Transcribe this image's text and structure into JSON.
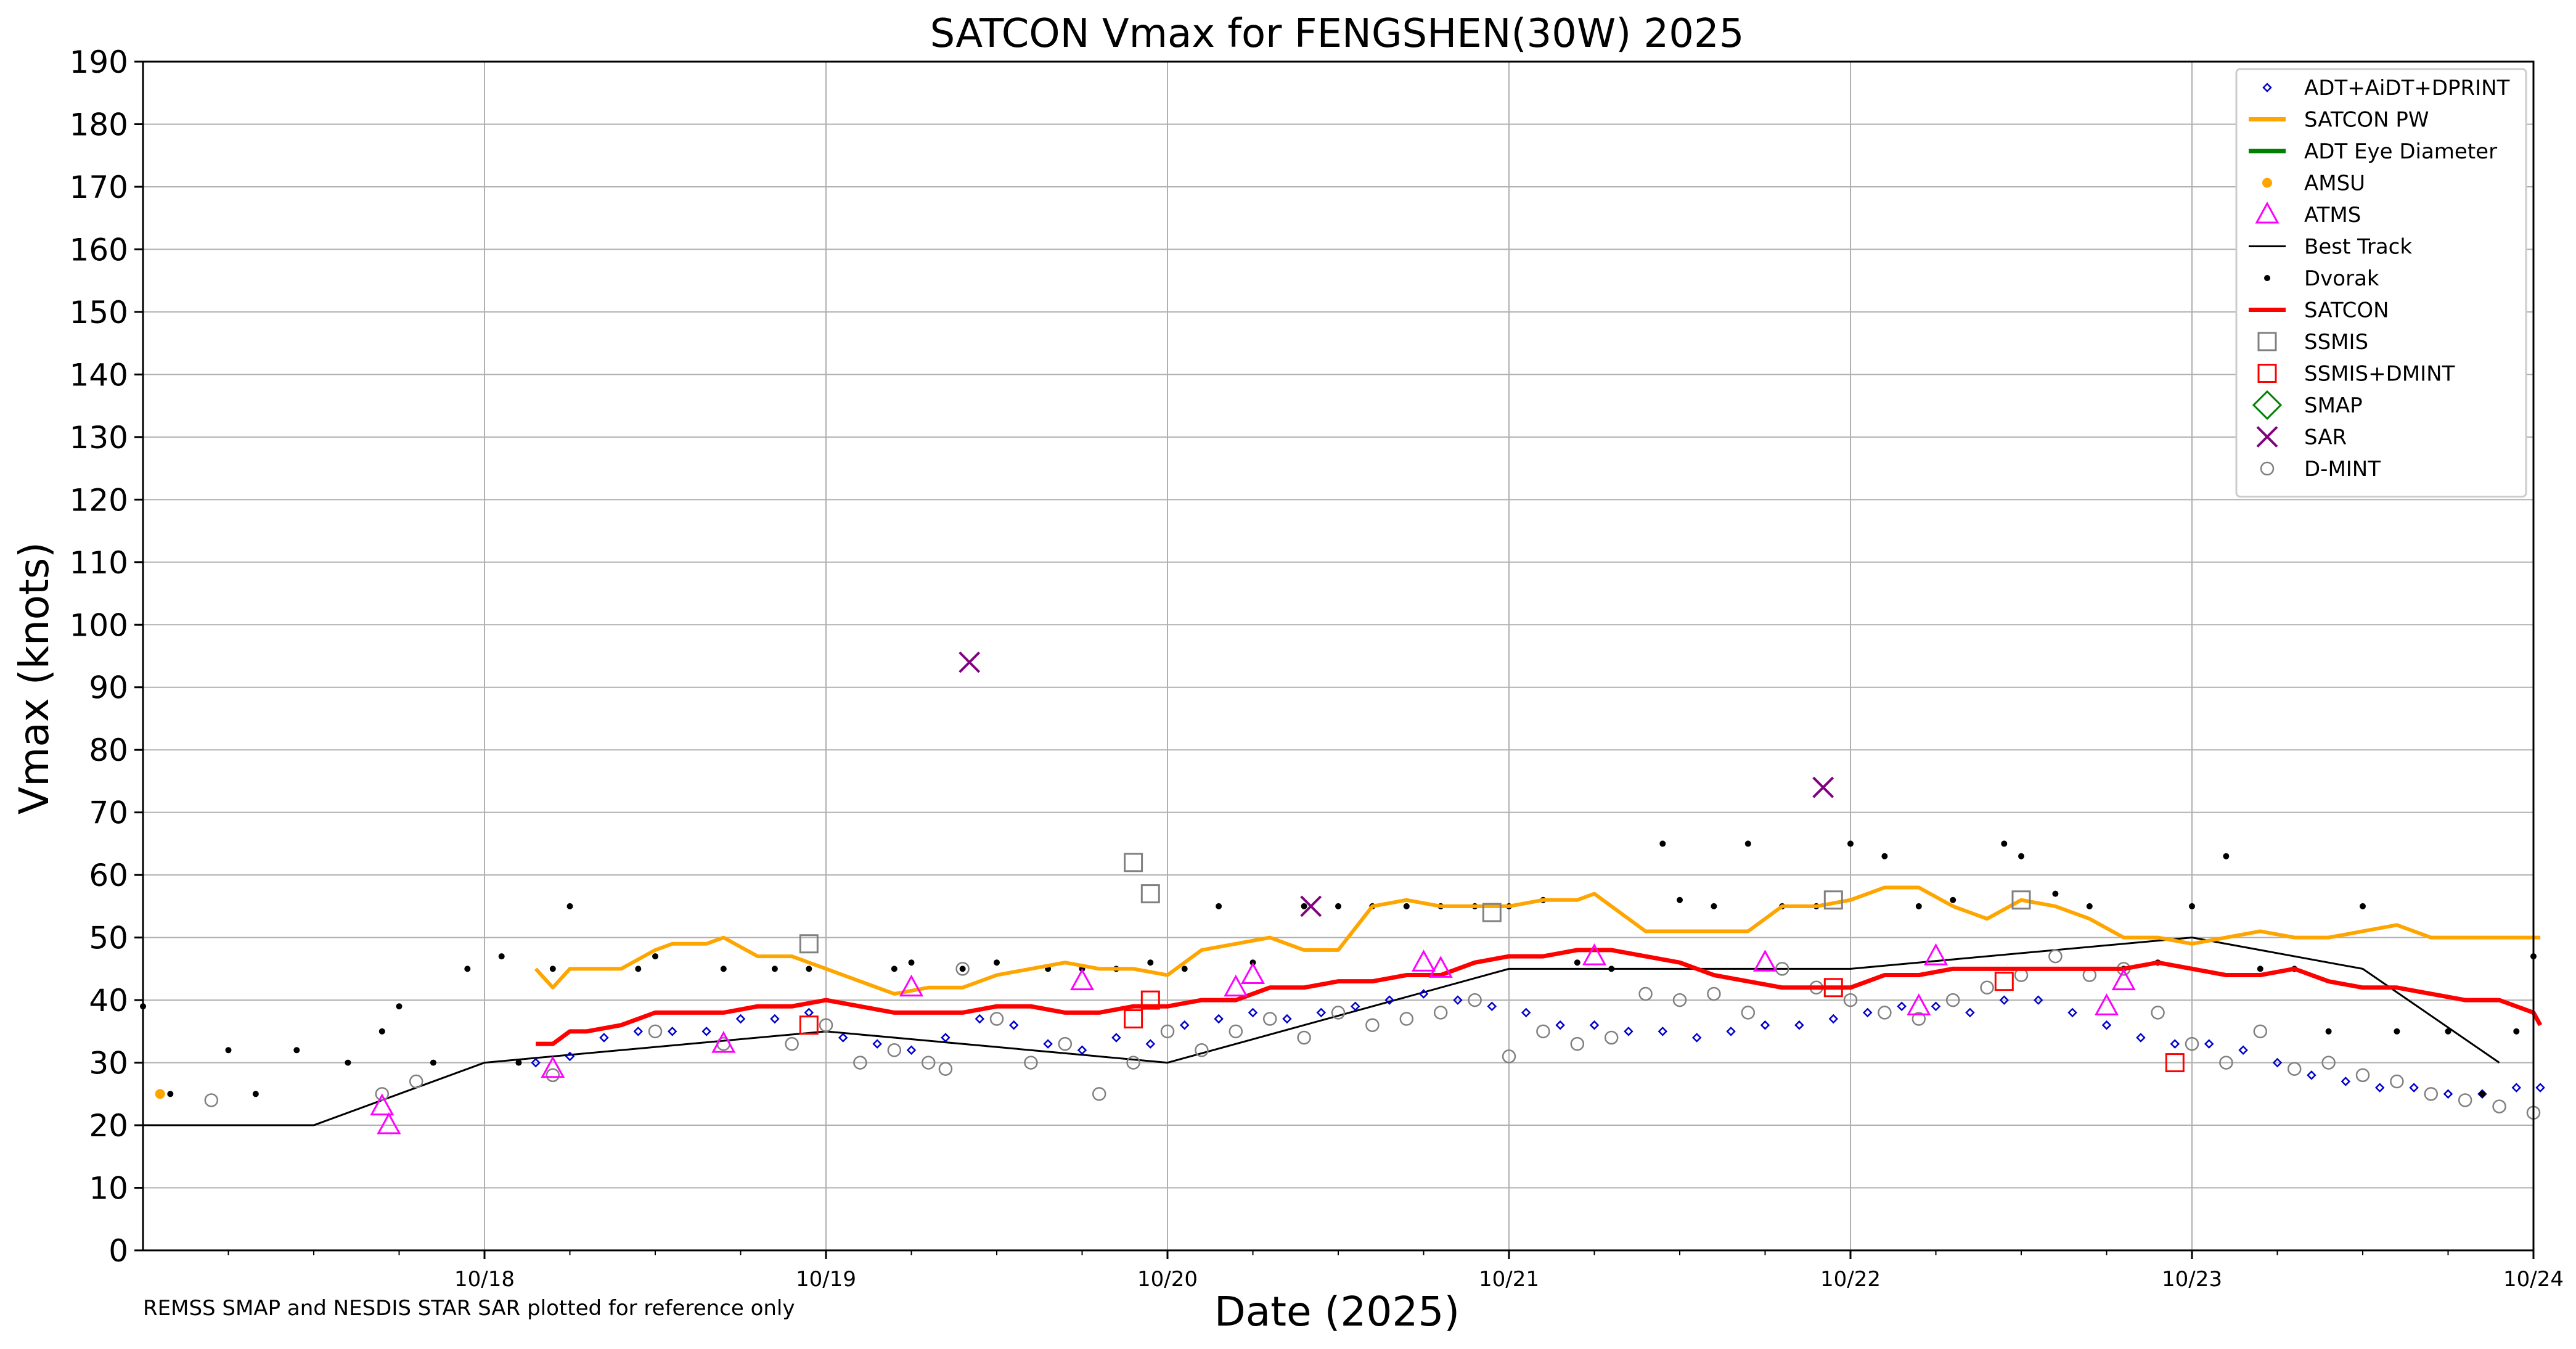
{
  "chart_data": {
    "type": "line",
    "title": "SATCON Vmax for FENGSHEN(30W) 2025",
    "xlabel": "Date (2025)",
    "ylabel": "Vmax (knots)",
    "xlim": [
      "10/17 00Z",
      "10/24 00Z"
    ],
    "ylim": [
      0,
      190
    ],
    "yticks": [
      0,
      10,
      20,
      30,
      40,
      50,
      60,
      70,
      80,
      90,
      100,
      110,
      120,
      130,
      140,
      150,
      160,
      170,
      180,
      190
    ],
    "xticks": [
      "10/18",
      "10/19",
      "10/20",
      "10/21",
      "10/22",
      "10/23",
      "10/24"
    ],
    "grid": true,
    "legend_position": "top-right",
    "note": "REMSS SMAP and NESDIS STAR SAR plotted for reference only",
    "legend": [
      {
        "name": "ADT+AiDT+DPRINT",
        "marker": "diamond",
        "color": "#0000cc"
      },
      {
        "name": "SATCON PW",
        "marker": "line",
        "color": "#ffa500"
      },
      {
        "name": "ADT Eye Diameter",
        "marker": "line",
        "color": "#008000"
      },
      {
        "name": "AMSU",
        "marker": "dot",
        "color": "#ffa500"
      },
      {
        "name": "ATMS",
        "marker": "triangle",
        "color": "#ff00ff"
      },
      {
        "name": "Best Track",
        "marker": "thinline",
        "color": "#000000"
      },
      {
        "name": "Dvorak",
        "marker": "smalldot",
        "color": "#000000"
      },
      {
        "name": "SATCON",
        "marker": "line",
        "color": "#ff0000"
      },
      {
        "name": "SSMIS",
        "marker": "square",
        "color": "#808080"
      },
      {
        "name": "SSMIS+DMINT",
        "marker": "square",
        "color": "#ff0000"
      },
      {
        "name": "SMAP",
        "marker": "bigdiamond",
        "color": "#008000"
      },
      {
        "name": "SAR",
        "marker": "x",
        "color": "#800080"
      },
      {
        "name": "D-MINT",
        "marker": "circle",
        "color": "#808080"
      }
    ],
    "series": {
      "best_track": {
        "x": [
          0,
          0.5,
          1,
          2,
          3,
          4,
          5,
          6,
          6.5,
          6.9
        ],
        "y": [
          20,
          20,
          30,
          35,
          30,
          45,
          45,
          50,
          45,
          30
        ]
      },
      "satcon_pw": {
        "x": [
          1.15,
          1.2,
          1.25,
          1.3,
          1.4,
          1.5,
          1.55,
          1.6,
          1.65,
          1.7,
          1.8,
          1.9,
          2.0,
          2.1,
          2.2,
          2.3,
          2.4,
          2.5,
          2.6,
          2.7,
          2.8,
          2.9,
          3.0,
          3.1,
          3.2,
          3.3,
          3.4,
          3.5,
          3.6,
          3.7,
          3.8,
          3.9,
          4.0,
          4.1,
          4.2,
          4.25,
          4.3,
          4.4,
          4.5,
          4.6,
          4.7,
          4.8,
          4.9,
          5.0,
          5.1,
          5.2,
          5.3,
          5.4,
          5.5,
          5.6,
          5.7,
          5.8,
          5.9,
          6.0,
          6.1,
          6.2,
          6.3,
          6.4,
          6.5,
          6.6,
          6.7,
          6.8,
          6.9,
          7.0,
          7.02
        ],
        "y": [
          45,
          42,
          45,
          45,
          45,
          48,
          49,
          49,
          49,
          50,
          47,
          47,
          45,
          43,
          41,
          42,
          42,
          44,
          45,
          46,
          45,
          45,
          44,
          48,
          49,
          50,
          48,
          48,
          55,
          56,
          55,
          55,
          55,
          56,
          56,
          57,
          55,
          51,
          51,
          51,
          51,
          55,
          55,
          56,
          58,
          58,
          55,
          53,
          56,
          55,
          53,
          50,
          50,
          49,
          50,
          51,
          50,
          50,
          51,
          52,
          50,
          50,
          50,
          50,
          50
        ]
      },
      "satcon": {
        "x": [
          1.15,
          1.2,
          1.25,
          1.3,
          1.4,
          1.5,
          1.6,
          1.7,
          1.8,
          1.9,
          2.0,
          2.1,
          2.2,
          2.3,
          2.4,
          2.5,
          2.6,
          2.7,
          2.8,
          2.9,
          3.0,
          3.1,
          3.2,
          3.3,
          3.4,
          3.5,
          3.6,
          3.7,
          3.8,
          3.9,
          4.0,
          4.1,
          4.2,
          4.3,
          4.4,
          4.5,
          4.6,
          4.7,
          4.8,
          4.9,
          5.0,
          5.1,
          5.2,
          5.3,
          5.4,
          5.5,
          5.6,
          5.7,
          5.8,
          5.9,
          6.0,
          6.1,
          6.2,
          6.3,
          6.4,
          6.5,
          6.6,
          6.7,
          6.8,
          6.9,
          7.0,
          7.02
        ],
        "y": [
          33,
          33,
          35,
          35,
          36,
          38,
          38,
          38,
          39,
          39,
          40,
          39,
          38,
          38,
          38,
          39,
          39,
          38,
          38,
          39,
          39,
          40,
          40,
          42,
          42,
          43,
          43,
          44,
          44,
          46,
          47,
          47,
          48,
          48,
          47,
          46,
          44,
          43,
          42,
          42,
          42,
          44,
          44,
          45,
          45,
          45,
          45,
          45,
          45,
          46,
          45,
          44,
          44,
          45,
          43,
          42,
          42,
          41,
          40,
          40,
          38,
          36
        ]
      },
      "adt": {
        "x": [
          1.15,
          1.25,
          1.35,
          1.45,
          1.55,
          1.65,
          1.75,
          1.85,
          1.95,
          2.05,
          2.15,
          2.25,
          2.35,
          2.45,
          2.55,
          2.65,
          2.75,
          2.85,
          2.95,
          3.05,
          3.15,
          3.25,
          3.35,
          3.45,
          3.55,
          3.65,
          3.75,
          3.85,
          3.95,
          4.05,
          4.15,
          4.25,
          4.35,
          4.45,
          4.55,
          4.65,
          4.75,
          4.85,
          4.95,
          5.05,
          5.15,
          5.25,
          5.35,
          5.45,
          5.55,
          5.65,
          5.75,
          5.85,
          5.95,
          6.05,
          6.15,
          6.25,
          6.35,
          6.45,
          6.55,
          6.65,
          6.75,
          6.85,
          6.95,
          7.02
        ],
        "y": [
          30,
          31,
          34,
          35,
          35,
          35,
          37,
          37,
          38,
          34,
          33,
          32,
          34,
          37,
          36,
          33,
          32,
          34,
          33,
          36,
          37,
          38,
          37,
          38,
          39,
          40,
          41,
          40,
          39,
          38,
          36,
          36,
          35,
          35,
          34,
          35,
          36,
          36,
          37,
          38,
          39,
          39,
          38,
          40,
          40,
          38,
          36,
          34,
          33,
          33,
          32,
          30,
          28,
          27,
          26,
          26,
          25,
          25,
          26,
          26
        ]
      },
      "dvorak": {
        "x": [
          0,
          0.08,
          0.25,
          0.33,
          0.45,
          0.6,
          0.7,
          0.75,
          0.85,
          0.95,
          1.05,
          1.1,
          1.2,
          1.25,
          1.45,
          1.5,
          1.7,
          1.85,
          1.95,
          2.2,
          2.25,
          2.4,
          2.5,
          2.65,
          2.75,
          2.85,
          2.95,
          3.05,
          3.15,
          3.25,
          3.4,
          3.5,
          3.6,
          3.7,
          3.8,
          3.9,
          4.0,
          4.1,
          4.2,
          4.3,
          4.45,
          4.5,
          4.6,
          4.7,
          4.8,
          4.9,
          5.0,
          5.1,
          5.2,
          5.3,
          5.45,
          5.5,
          5.6,
          5.7,
          5.8,
          5.9,
          6.0,
          6.1,
          6.2,
          6.3,
          6.4,
          6.5,
          6.6,
          6.75,
          6.85,
          6.95,
          7.0
        ],
        "y": [
          39,
          25,
          32,
          25,
          32,
          30,
          35,
          39,
          30,
          45,
          47,
          30,
          45,
          55,
          45,
          47,
          45,
          45,
          45,
          45,
          46,
          45,
          46,
          45,
          45,
          45,
          46,
          45,
          55,
          46,
          55,
          55,
          55,
          55,
          55,
          55,
          55,
          56,
          46,
          45,
          65,
          56,
          55,
          65,
          55,
          55,
          65,
          63,
          55,
          56,
          65,
          63,
          57,
          55,
          45,
          46,
          55,
          63,
          45,
          45,
          35,
          55,
          35,
          35,
          25,
          35,
          47
        ]
      },
      "dmint": {
        "x": [
          0.2,
          0.7,
          0.8,
          1.2,
          1.5,
          1.7,
          1.9,
          2.0,
          2.1,
          2.2,
          2.3,
          2.35,
          2.4,
          2.5,
          2.6,
          2.7,
          2.8,
          2.9,
          3.0,
          3.1,
          3.2,
          3.3,
          3.4,
          3.5,
          3.6,
          3.7,
          3.8,
          3.9,
          4.0,
          4.1,
          4.2,
          4.3,
          4.4,
          4.5,
          4.6,
          4.7,
          4.8,
          4.9,
          5.0,
          5.1,
          5.2,
          5.3,
          5.4,
          5.5,
          5.6,
          5.7,
          5.8,
          5.9,
          6.0,
          6.1,
          6.2,
          6.3,
          6.4,
          6.5,
          6.6,
          6.7,
          6.8,
          6.9,
          7.0,
          7.15,
          7.2
        ],
        "y": [
          24,
          25,
          27,
          28,
          35,
          33,
          33,
          36,
          30,
          32,
          30,
          29,
          45,
          37,
          30,
          33,
          25,
          30,
          35,
          32,
          35,
          37,
          34,
          38,
          36,
          37,
          38,
          40,
          31,
          35,
          33,
          34,
          41,
          40,
          41,
          38,
          45,
          42,
          40,
          38,
          37,
          40,
          42,
          44,
          47,
          44,
          45,
          38,
          33,
          30,
          35,
          29,
          30,
          28,
          27,
          25,
          24,
          23,
          22,
          22,
          24
        ]
      },
      "ssmis": {
        "x": [
          1.95,
          2.9,
          2.95,
          3.95,
          4.95,
          5.5
        ],
        "y": [
          49,
          62,
          57,
          54,
          56,
          56
        ]
      },
      "ssmis_dmint": {
        "x": [
          1.95,
          2.9,
          2.95,
          4.95,
          5.45,
          5.95
        ],
        "y": [
          36,
          37,
          40,
          42,
          43,
          30
        ]
      },
      "atms": {
        "x": [
          0.7,
          0.72,
          1.2,
          1.7,
          2.25,
          2.75,
          3.2,
          3.25,
          3.75,
          3.8,
          4.25,
          4.75,
          5.2,
          5.25,
          5.75,
          5.8
        ],
        "y": [
          23,
          20,
          29,
          33,
          42,
          43,
          42,
          44,
          46,
          45,
          47,
          46,
          39,
          47,
          39,
          43
        ]
      },
      "amsu": {
        "x": [
          0.05
        ],
        "y": [
          25
        ]
      },
      "sar": {
        "x": [
          2.42,
          3.42,
          4.92
        ],
        "y": [
          94,
          55,
          74
        ]
      },
      "smap": {
        "x": [],
        "y": []
      },
      "adt_eye_diameter": {
        "x": [],
        "y": []
      }
    }
  },
  "colors": {
    "satcon": "#ff0000",
    "satcon_pw": "#ffa500",
    "best_track": "#000000",
    "adt": "#0000cc",
    "ssmis": "#808080",
    "ssmis_dmint": "#ff0000",
    "atms": "#ff00ff",
    "sar": "#800080",
    "dmint": "#808080",
    "grid": "#b0b0b0"
  }
}
